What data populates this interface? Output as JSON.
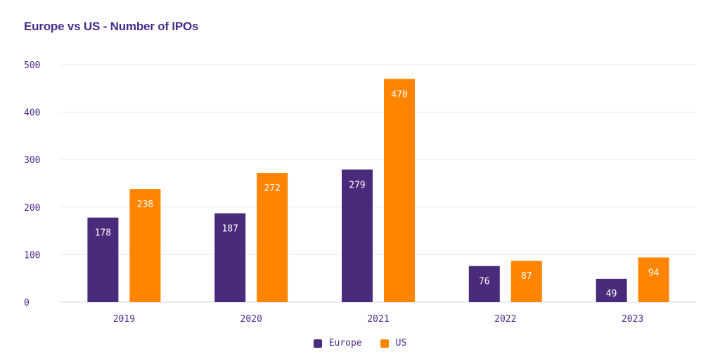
{
  "chart_data": {
    "type": "bar",
    "title": "Europe vs US - Number of IPOs",
    "categories": [
      "2019",
      "2020",
      "2021",
      "2022",
      "2023"
    ],
    "series": [
      {
        "name": "Europe",
        "color": "#4a2a7a",
        "values": [
          178,
          187,
          279,
          76,
          49
        ]
      },
      {
        "name": "US",
        "color": "#ff8500",
        "values": [
          238,
          272,
          470,
          87,
          94
        ]
      }
    ],
    "yticks": [
      "0",
      "100",
      "200",
      "300",
      "400",
      "500"
    ],
    "ylim": [
      0,
      500
    ],
    "grid": true,
    "legend": "bottom-center"
  }
}
